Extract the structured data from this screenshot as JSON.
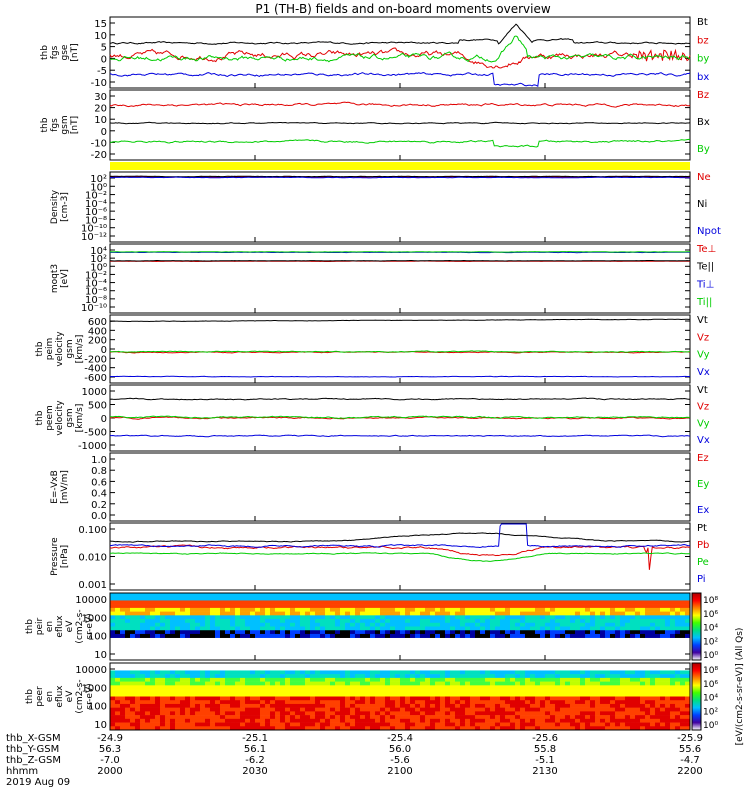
{
  "title": "P1  (TH-B) fields and on-board moments overview",
  "colors": {
    "black": "#000000",
    "red": "#e00000",
    "green": "#00cc00",
    "blue": "#0000dd",
    "yellow": "#ffff00"
  },
  "chart_data": [
    {
      "type": "line",
      "id": "fgs_gse",
      "ylabel": [
        "thb",
        "fgs",
        "gse",
        "[nT]"
      ],
      "ylim": [
        -10,
        16
      ],
      "ticks": [
        15,
        10,
        5,
        0,
        -5,
        -10
      ],
      "series": [
        {
          "name": "Bt",
          "color": "black",
          "base": 6.5,
          "noise": 0.4,
          "feature": "bt_spike"
        },
        {
          "name": "bz",
          "color": "red",
          "base": 2.0,
          "noise": 1.5,
          "feature": "dip"
        },
        {
          "name": "by",
          "color": "green",
          "base": 1.0,
          "noise": 1.2,
          "feature": "rise"
        },
        {
          "name": "bx",
          "color": "blue",
          "base": -5.0,
          "noise": 0.6,
          "feature": "drop"
        }
      ]
    },
    {
      "type": "line",
      "id": "fgs_gsm",
      "ylabel": [
        "thb",
        "fgs",
        "gsm",
        "[nT]"
      ],
      "ylim": [
        -25,
        32
      ],
      "ticks": [
        30,
        20,
        10,
        0,
        -10,
        -20
      ],
      "series": [
        {
          "name": "Bz",
          "color": "red",
          "base": 20,
          "noise": 1.2,
          "feature": "flat"
        },
        {
          "name": "Bx",
          "color": "black",
          "base": 5,
          "noise": 0.5,
          "feature": "flat"
        },
        {
          "name": "By",
          "color": "green",
          "base": -10,
          "noise": 1.0,
          "feature": "drop"
        }
      ]
    },
    {
      "type": "line",
      "id": "density",
      "log": true,
      "ylabel": [
        "Density",
        "[cm-3]"
      ],
      "ylim": [
        -12,
        2
      ],
      "ticks": [
        "10²",
        "10⁰",
        "10⁻²",
        "10⁻⁴",
        "10⁻⁶",
        "10⁻⁸",
        "10⁻¹⁰",
        "10⁻¹²"
      ],
      "series": [
        {
          "name": "Ne",
          "color": "red",
          "base": 1.0,
          "noise": 0.05,
          "feature": "flat"
        },
        {
          "name": "Ni",
          "color": "black",
          "base": 1.1,
          "noise": 0.05,
          "feature": "flat"
        },
        {
          "name": "Npot",
          "color": "blue",
          "base": 0.9,
          "noise": 0.05,
          "feature": "flat"
        }
      ]
    },
    {
      "type": "line",
      "id": "temperature",
      "log": true,
      "ylabel": [
        "moqt3",
        "[eV]"
      ],
      "ylim": [
        -10,
        4
      ],
      "ticks": [
        "10⁴",
        "10²",
        "10⁰",
        "10⁻²",
        "10⁻⁴",
        "10⁻⁶",
        "10⁻⁸",
        "10⁻¹⁰"
      ],
      "series": [
        {
          "name": "Te⊥",
          "color": "red",
          "base": 0.5,
          "noise": 0.04,
          "feature": "flat"
        },
        {
          "name": "Te||",
          "color": "black",
          "base": 0.6,
          "noise": 0.04,
          "feature": "flat"
        },
        {
          "name": "Ti⊥",
          "color": "blue",
          "base": 2.3,
          "noise": 0.04,
          "feature": "flat"
        },
        {
          "name": "Ti||",
          "color": "green",
          "base": 2.4,
          "noise": 0.04,
          "feature": "flat"
        }
      ]
    },
    {
      "type": "line",
      "id": "peim_vel",
      "ylabel": [
        "thb",
        "peim",
        "velocity",
        "gsm",
        "[km/s]"
      ],
      "ylim": [
        -640,
        640
      ],
      "ticks": [
        600,
        400,
        200,
        0,
        -200,
        -400,
        -600
      ],
      "series": [
        {
          "name": "Vt",
          "color": "black",
          "base": 520,
          "noise": 5,
          "feature": "slowrise"
        },
        {
          "name": "Vz",
          "color": "red",
          "base": -60,
          "noise": 10,
          "feature": "flat"
        },
        {
          "name": "Vy",
          "color": "green",
          "base": -50,
          "noise": 10,
          "feature": "flat"
        },
        {
          "name": "Vx",
          "color": "blue",
          "base": -520,
          "noise": 5,
          "feature": "flat"
        }
      ]
    },
    {
      "type": "line",
      "id": "peem_vel",
      "ylabel": [
        "thb",
        "peem",
        "velocity",
        "gsm",
        "[km/s]"
      ],
      "ylim": [
        -1050,
        1050
      ],
      "ticks": [
        1000,
        500,
        0,
        -500,
        -1000
      ],
      "series": [
        {
          "name": "Vt",
          "color": "black",
          "base": 600,
          "noise": 20,
          "feature": "flat"
        },
        {
          "name": "Vz",
          "color": "red",
          "base": 0,
          "noise": 25,
          "feature": "flat"
        },
        {
          "name": "Vy",
          "color": "green",
          "base": 30,
          "noise": 25,
          "feature": "flat"
        },
        {
          "name": "Vx",
          "color": "blue",
          "base": -570,
          "noise": 20,
          "feature": "flat"
        }
      ]
    },
    {
      "type": "line",
      "id": "efield",
      "ylabel": [
        "E=-VxB",
        "[mV/m]"
      ],
      "ylim": [
        0,
        1
      ],
      "ticks": [
        "1.0",
        "0.8",
        "0.6",
        "0.4",
        "0.2",
        "0.0"
      ],
      "series": [
        {
          "name": "Ez",
          "color": "red"
        },
        {
          "name": "Ey",
          "color": "green"
        },
        {
          "name": "Ex",
          "color": "blue"
        }
      ]
    },
    {
      "type": "line",
      "id": "pressure",
      "log": true,
      "ylabel": [
        "Pressure",
        "[nPa]"
      ],
      "ylim": [
        -3.1,
        -0.9
      ],
      "ticks": [
        "0.100",
        "0.010",
        "0.001"
      ],
      "series": [
        {
          "name": "Pt",
          "color": "black",
          "base": -1.5,
          "noise": 0.02,
          "feature": "hump"
        },
        {
          "name": "Pb",
          "color": "red",
          "base": -1.7,
          "noise": 0.04,
          "feature": "pdip"
        },
        {
          "name": "Pe",
          "color": "green",
          "base": -1.9,
          "noise": 0.02,
          "feature": "pdip"
        },
        {
          "name": "Pi",
          "color": "blue",
          "base": -1.65,
          "noise": 0.03,
          "feature": "rise"
        }
      ]
    },
    {
      "type": "heatmap",
      "id": "peir",
      "ylabel": [
        "thb",
        "peir",
        "en",
        "eflux",
        "eV",
        "(cm2-s-",
        "sr-eV)"
      ],
      "ylim": [
        5,
        20000
      ],
      "ticks": [
        "10000",
        "1000",
        "100",
        "10"
      ],
      "log": true,
      "profile": "ion"
    },
    {
      "type": "heatmap",
      "id": "peer",
      "ylabel": [
        "thb",
        "peer",
        "en",
        "eflux",
        "eV",
        "(cm2-s-",
        "sr-eV)"
      ],
      "ylim": [
        5,
        20000
      ],
      "ticks": [
        "10000",
        "1000",
        "100",
        "10"
      ],
      "log": true,
      "profile": "electron"
    }
  ],
  "colorbar": {
    "ticks": [
      "10⁸",
      "10⁶",
      "10⁴",
      "10²",
      "10⁰"
    ],
    "label": "[eV/(cm2-s-sr-eV)] (All Qs)"
  },
  "xaxis": {
    "row_labels": [
      "thb_X-GSM",
      "thb_Y-GSM",
      "thb_Z-GSM",
      "hhmm",
      "2019 Aug 09"
    ],
    "columns": [
      [
        "-24.9",
        "56.3",
        "-7.0",
        "2000"
      ],
      [
        "-25.1",
        "56.1",
        "-6.2",
        "2030"
      ],
      [
        "-25.4",
        "56.0",
        "-5.6",
        "2100"
      ],
      [
        "-25.6",
        "55.8",
        "-5.1",
        "2130"
      ],
      [
        "-25.9",
        "55.6",
        "-4.7",
        "2200"
      ]
    ]
  }
}
